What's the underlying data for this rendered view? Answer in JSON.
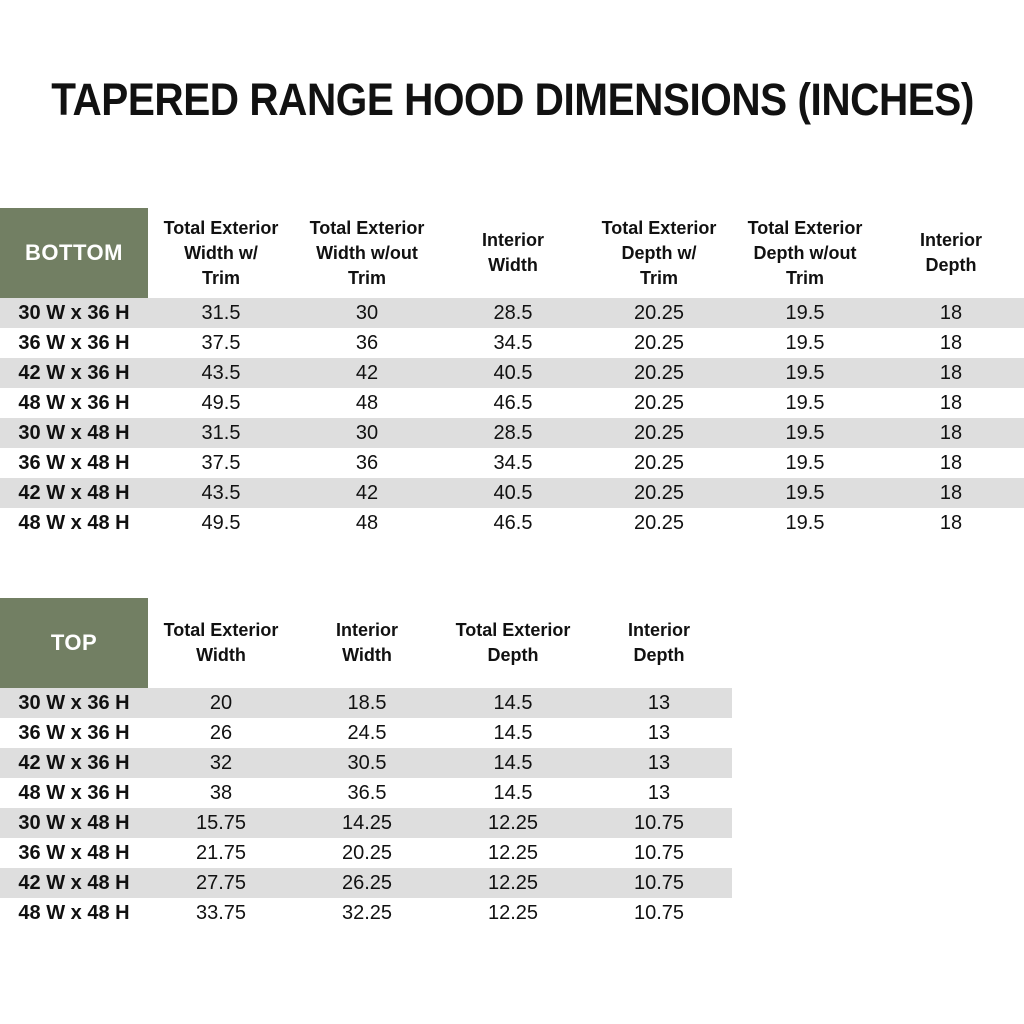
{
  "title": "TAPERED RANGE HOOD DIMENSIONS (INCHES)",
  "units": "INCHES",
  "colors": {
    "header_box": "#727f63",
    "stripe": "#dedede",
    "header_box_text": "#ffffff",
    "body_text": "#111111"
  },
  "tables": [
    {
      "id": "bottom",
      "label": "BOTTOM",
      "columns": [
        "Total Exterior\nWidth w/\nTrim",
        "Total Exterior\nWidth w/out\nTrim",
        "Interior\nWidth",
        "Total Exterior\nDepth w/\nTrim",
        "Total Exterior\nDepth w/out\nTrim",
        "Interior\nDepth"
      ],
      "rows": [
        {
          "size": "30 W x 36 H",
          "values": [
            "31.5",
            "30",
            "28.5",
            "20.25",
            "19.5",
            "18"
          ]
        },
        {
          "size": "36 W x 36 H",
          "values": [
            "37.5",
            "36",
            "34.5",
            "20.25",
            "19.5",
            "18"
          ]
        },
        {
          "size": "42 W x 36 H",
          "values": [
            "43.5",
            "42",
            "40.5",
            "20.25",
            "19.5",
            "18"
          ]
        },
        {
          "size": "48 W x 36 H",
          "values": [
            "49.5",
            "48",
            "46.5",
            "20.25",
            "19.5",
            "18"
          ]
        },
        {
          "size": "30 W x 48 H",
          "values": [
            "31.5",
            "30",
            "28.5",
            "20.25",
            "19.5",
            "18"
          ]
        },
        {
          "size": "36 W x 48 H",
          "values": [
            "37.5",
            "36",
            "34.5",
            "20.25",
            "19.5",
            "18"
          ]
        },
        {
          "size": "42 W x 48 H",
          "values": [
            "43.5",
            "42",
            "40.5",
            "20.25",
            "19.5",
            "18"
          ]
        },
        {
          "size": "48 W x 48 H",
          "values": [
            "49.5",
            "48",
            "46.5",
            "20.25",
            "19.5",
            "18"
          ]
        }
      ]
    },
    {
      "id": "top",
      "label": "TOP",
      "columns": [
        "Total Exterior\nWidth",
        "Interior\nWidth",
        "Total Exterior\nDepth",
        "Interior\nDepth"
      ],
      "rows": [
        {
          "size": "30 W x 36 H",
          "values": [
            "20",
            "18.5",
            "14.5",
            "13"
          ]
        },
        {
          "size": "36 W x 36 H",
          "values": [
            "26",
            "24.5",
            "14.5",
            "13"
          ]
        },
        {
          "size": "42 W x 36 H",
          "values": [
            "32",
            "30.5",
            "14.5",
            "13"
          ]
        },
        {
          "size": "48 W x 36 H",
          "values": [
            "38",
            "36.5",
            "14.5",
            "13"
          ]
        },
        {
          "size": "30 W x 48 H",
          "values": [
            "15.75",
            "14.25",
            "12.25",
            "10.75"
          ]
        },
        {
          "size": "36 W x 48 H",
          "values": [
            "21.75",
            "20.25",
            "12.25",
            "10.75"
          ]
        },
        {
          "size": "42 W x 48 H",
          "values": [
            "27.75",
            "26.25",
            "12.25",
            "10.75"
          ]
        },
        {
          "size": "48 W x 48 H",
          "values": [
            "33.75",
            "32.25",
            "12.25",
            "10.75"
          ]
        }
      ]
    }
  ]
}
